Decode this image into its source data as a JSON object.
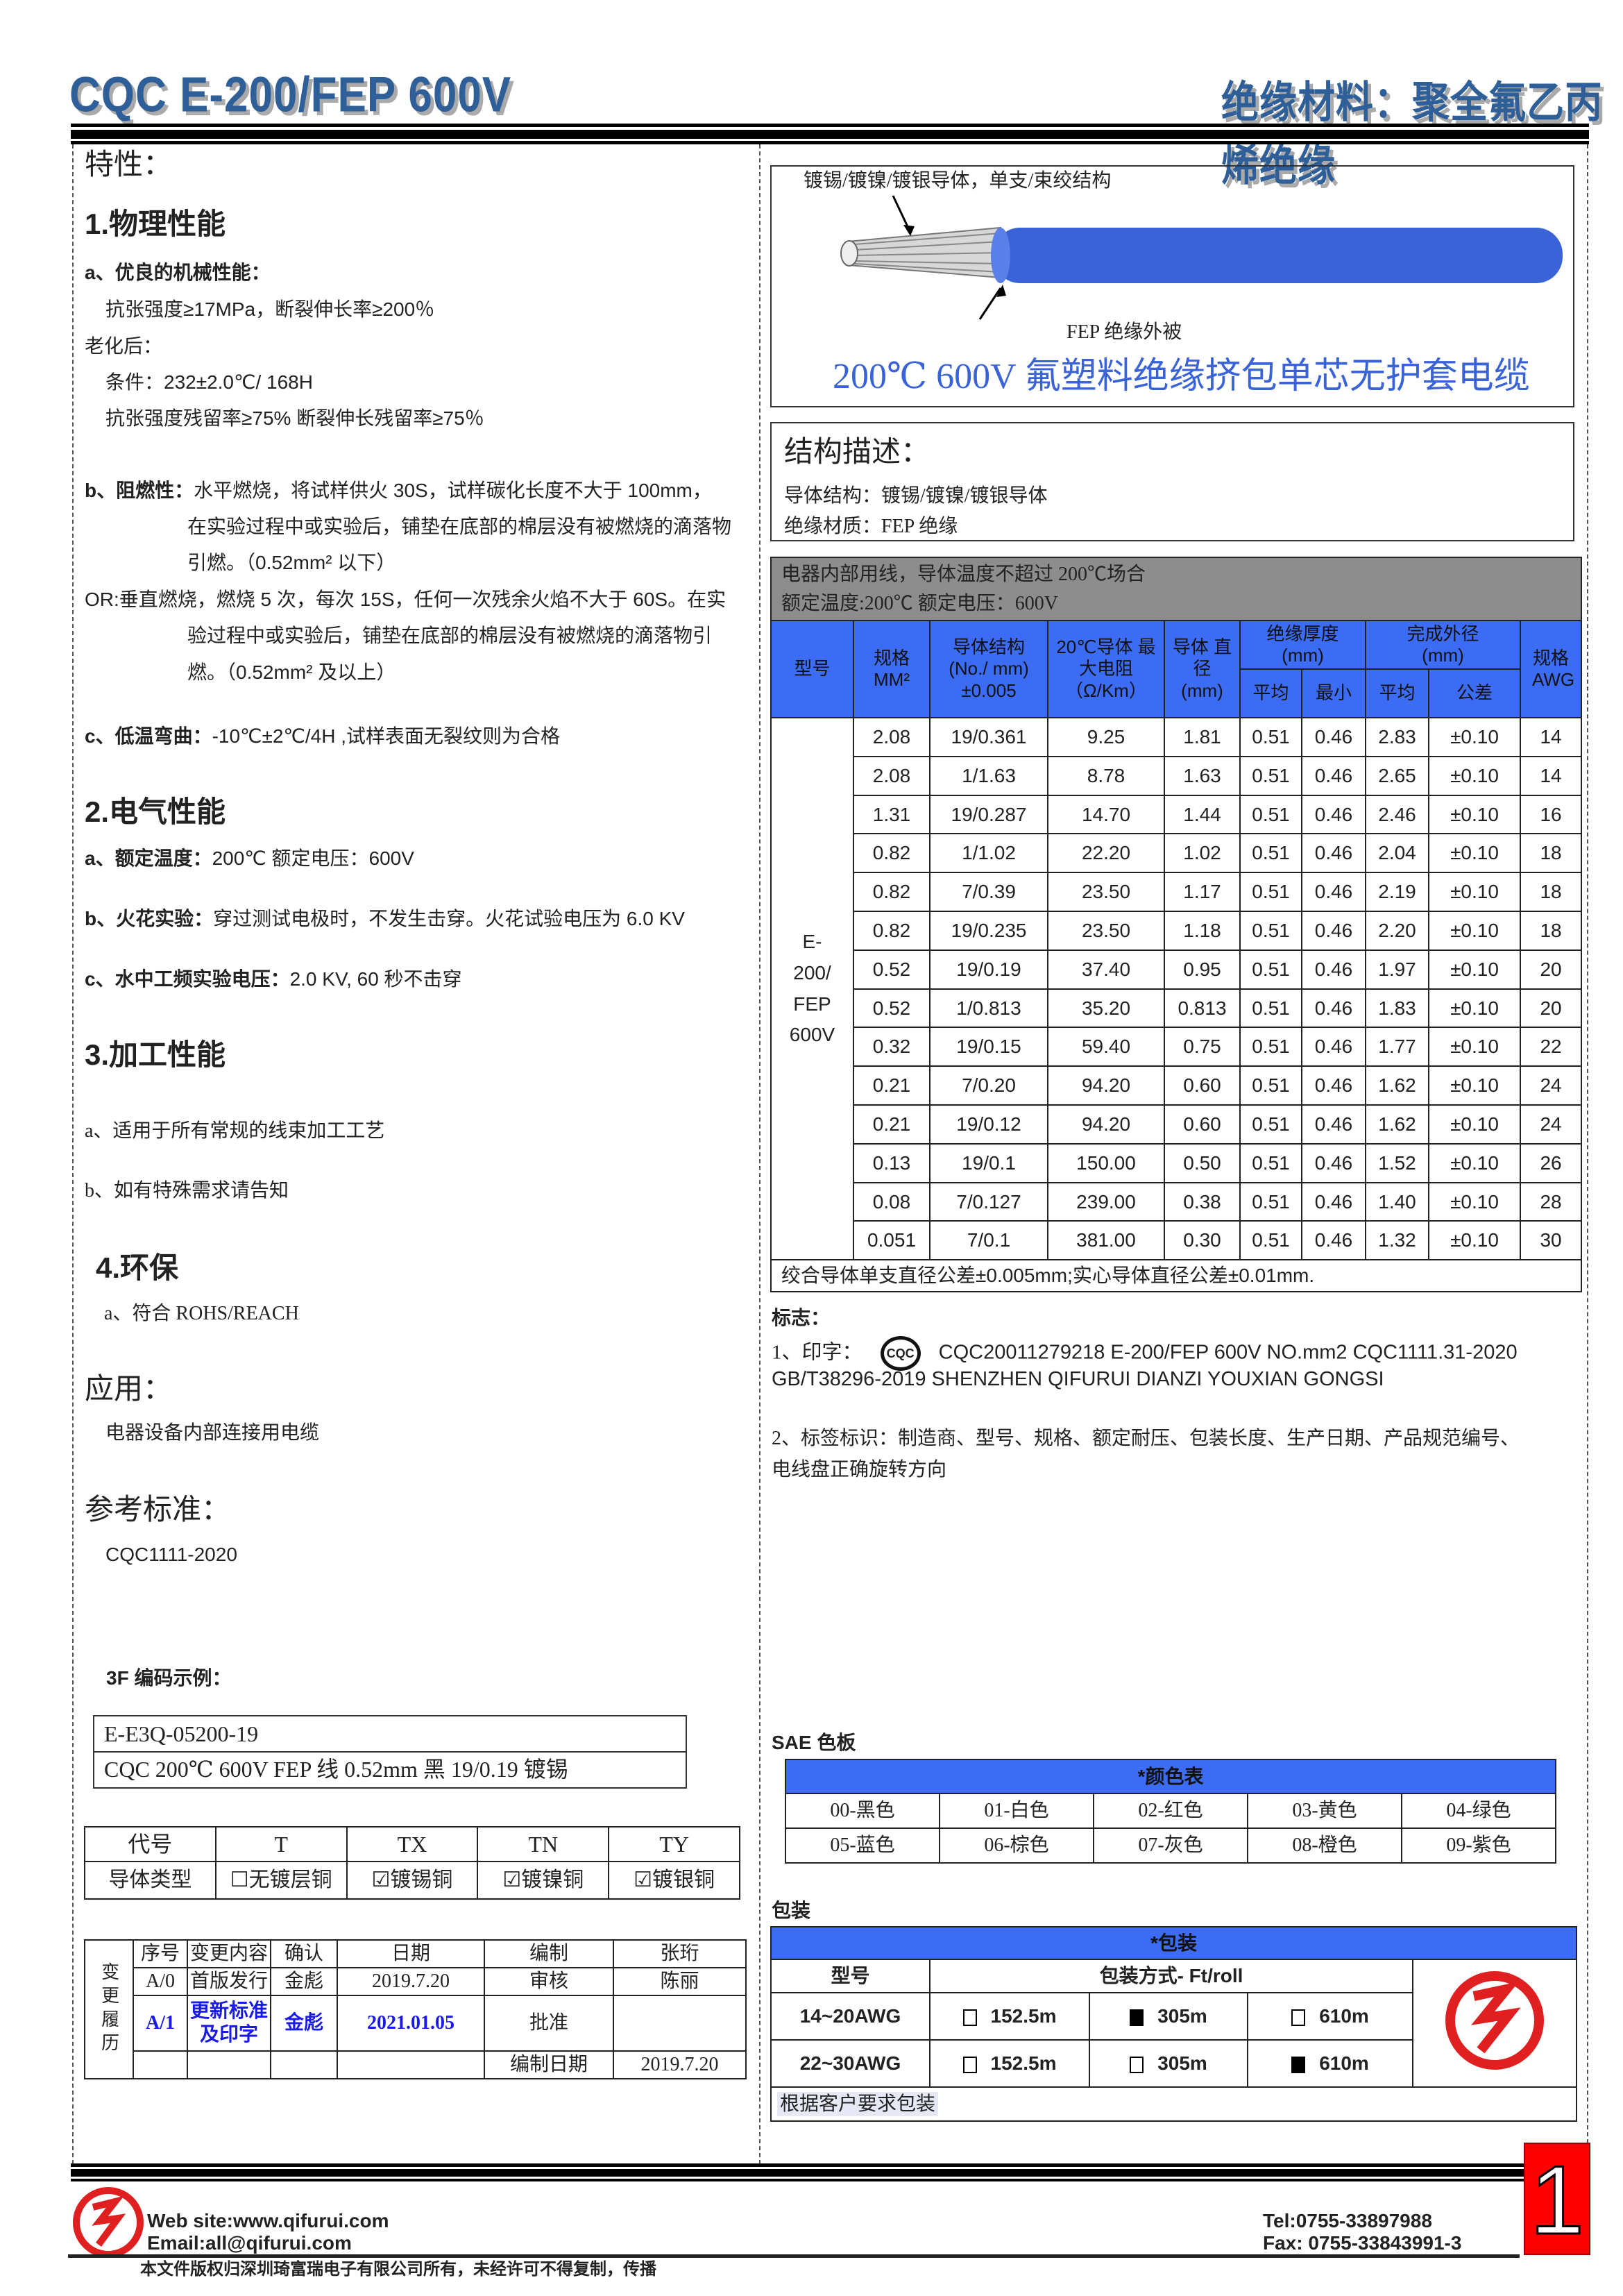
{
  "header": {
    "left_title": "CQC E-200/FEP 600V",
    "right_title": "绝缘材料：聚全氟乙丙烯绝缘"
  },
  "left": {
    "features_heading": "特性：",
    "physical": {
      "heading": "1.物理性能",
      "a_label": "a、优良的机械性能：",
      "a_line1": "抗张强度≥17MPa，断裂伸长率≥200％",
      "aging_label": "老化后：",
      "aging_cond": "条件：232±2.0℃/ 168H",
      "aging_result": "抗张强度残留率≥75%  断裂伸长残留率≥75％",
      "b_label": "b、阻燃性：",
      "b_line1": "水平燃烧，将试样供火 30S，试样碳化长度不大于 100mm，",
      "b_line2": "在实验过程中或实验后，铺垫在底部的棉层没有被燃烧的滴落物",
      "b_line3": "引燃。（0.52mm² 以下）",
      "or_line1": "OR:垂直燃烧，燃烧 5 次，每次 15S，任何一次残余火焰不大于 60S。在实",
      "or_line2": "验过程中或实验后，铺垫在底部的棉层没有被燃烧的滴落物引",
      "or_line3": "燃。（0.52mm² 及以上）",
      "c_label": "c、低温弯曲：",
      "c_text": "-10℃±2℃/4H ,试样表面无裂纹则为合格"
    },
    "electrical": {
      "heading": "2.电气性能",
      "a_label": "a、额定温度：",
      "a_text": "200℃    额定电压：600V",
      "b_label": "b、火花实验：",
      "b_text": "穿过测试电极时，不发生击穿。火花试验电压为 6.0 KV",
      "c_label": "c、水中工频实验电压：",
      "c_text": "2.0 KV, 60 秒不击穿"
    },
    "processing": {
      "heading": "3.加工性能",
      "a": "a、适用于所有常规的线束加工工艺",
      "b": "b、如有特殊需求请告知"
    },
    "environment": {
      "heading": "4.环保",
      "a": "a、符合 ROHS/REACH"
    },
    "application": {
      "heading": "应用：",
      "text": "电器设备内部连接用电缆"
    },
    "standard": {
      "heading": "参考标准：",
      "text": "CQC1111-2020"
    },
    "code_example": {
      "heading": "3F 编码示例：",
      "line1": "E-E3Q-05200-19",
      "line2": "CQC 200℃  600V FEP 线  0.52mm  黑 19/0.19 镀锡"
    },
    "conductor_table": {
      "codes": [
        "代号",
        "T",
        "TX",
        "TN",
        "TY"
      ],
      "types": [
        {
          "label": "导体类型",
          "checked": null
        },
        {
          "label": "无镀层铜",
          "checked": false
        },
        {
          "label": "镀锡铜",
          "checked": true
        },
        {
          "label": "镀镍铜",
          "checked": true
        },
        {
          "label": "镀银铜",
          "checked": true
        }
      ]
    },
    "revision": {
      "side_label": "变更履历",
      "header": [
        "序号",
        "变更内容",
        "确认",
        "日期",
        "编制",
        "张珩"
      ],
      "row1": [
        "A/0",
        "首版发行",
        "金彪",
        "2019.7.20",
        "审核",
        "陈丽"
      ],
      "row2": [
        "A/1",
        "更新标准及印字",
        "金彪",
        "2021.01.05",
        "批准",
        ""
      ],
      "row3": [
        "",
        "",
        "",
        "",
        "编制日期",
        "2019.7.20"
      ],
      "highlight_color": "#1a1ae6"
    }
  },
  "right": {
    "wire": {
      "conductor_label": "镀锡/镀镍/镀银导体，单支/束绞结构",
      "jacket_label": "FEP 绝缘外被",
      "title": "200℃  600V 氟塑料绝缘挤包单芯无护套电缆",
      "insulation_color": "#3a63d8"
    },
    "structure": {
      "heading": "结构描述：",
      "line1": "导体结构：镀锡/镀镍/镀银导体",
      "line2": "绝缘材质：FEP 绝缘"
    },
    "spec_table": {
      "info1": "电器内部用线，导体温度不超过 200℃场合",
      "info2": "额定温度:200℃  额定电压：600V",
      "headers": {
        "model": "型号",
        "size": "规格 MM²",
        "structure": "导体结构 (No./ mm) ±0.005",
        "resistance": "20℃导体 最大电阻 （Ω/Km）",
        "diameter": "导体 直径 (mm)",
        "insulation": "绝缘厚度 (mm)",
        "outer": "完成外径 (mm)",
        "avg": "平均",
        "min": "最小",
        "avg2": "平均",
        "tol": "公差",
        "awg": "规格 AWG"
      },
      "model": "E-200/ FEP 600V",
      "rows": [
        [
          "2.08",
          "19/0.361",
          "9.25",
          "1.81",
          "0.51",
          "0.46",
          "2.83",
          "±0.10",
          "14"
        ],
        [
          "2.08",
          "1/1.63",
          "8.78",
          "1.63",
          "0.51",
          "0.46",
          "2.65",
          "±0.10",
          "14"
        ],
        [
          "1.31",
          "19/0.287",
          "14.70",
          "1.44",
          "0.51",
          "0.46",
          "2.46",
          "±0.10",
          "16"
        ],
        [
          "0.82",
          "1/1.02",
          "22.20",
          "1.02",
          "0.51",
          "0.46",
          "2.04",
          "±0.10",
          "18"
        ],
        [
          "0.82",
          "7/0.39",
          "23.50",
          "1.17",
          "0.51",
          "0.46",
          "2.19",
          "±0.10",
          "18"
        ],
        [
          "0.82",
          "19/0.235",
          "23.50",
          "1.18",
          "0.51",
          "0.46",
          "2.20",
          "±0.10",
          "18"
        ],
        [
          "0.52",
          "19/0.19",
          "37.40",
          "0.95",
          "0.51",
          "0.46",
          "1.97",
          "±0.10",
          "20"
        ],
        [
          "0.52",
          "1/0.813",
          "35.20",
          "0.813",
          "0.51",
          "0.46",
          "1.83",
          "±0.10",
          "20"
        ],
        [
          "0.32",
          "19/0.15",
          "59.40",
          "0.75",
          "0.51",
          "0.46",
          "1.77",
          "±0.10",
          "22"
        ],
        [
          "0.21",
          "7/0.20",
          "94.20",
          "0.60",
          "0.51",
          "0.46",
          "1.62",
          "±0.10",
          "24"
        ],
        [
          "0.21",
          "19/0.12",
          "94.20",
          "0.60",
          "0.51",
          "0.46",
          "1.62",
          "±0.10",
          "24"
        ],
        [
          "0.13",
          "19/0.1",
          "150.00",
          "0.50",
          "0.51",
          "0.46",
          "1.52",
          "±0.10",
          "26"
        ],
        [
          "0.08",
          "7/0.127",
          "239.00",
          "0.38",
          "0.51",
          "0.46",
          "1.40",
          "±0.10",
          "28"
        ],
        [
          "0.051",
          "7/0.1",
          "381.00",
          "0.30",
          "0.51",
          "0.46",
          "1.32",
          "±0.10",
          "30"
        ]
      ],
      "note": "绞合导体单支直径公差±0.005mm;实心导体直径公差±0.01mm.",
      "header_color": "#3c6cf4",
      "info_color": "#8d8d8d"
    },
    "marking": {
      "heading": "标志：",
      "print_label": "1、印字：",
      "cqc_logo": "CQC",
      "print_text": "CQC20011279218  E-200/FEP  600V  NO.mm2  CQC1111.31-2020",
      "print_text2": "GB/T38296-2019 SHENZHEN QIFURUI DIANZI YOUXIAN GONGSI",
      "label_line1": "2、标签标识：制造商、型号、规格、额定耐压、包装长度、生产日期、产品规范编号、",
      "label_line2": "电线盘正确旋转方向"
    },
    "colors": {
      "heading": "SAE 色板",
      "table_title": "*颜色表",
      "items": [
        "00-黑色",
        "01-白色",
        "02-红色",
        "03-黄色",
        "04-绿色",
        "05-蓝色",
        "06-棕色",
        "07-灰色",
        "08-橙色",
        "09-紫色"
      ]
    },
    "packaging": {
      "heading": "包装",
      "table_title": "*包装",
      "model_header": "型号",
      "method_header": "包装方式- Ft/roll",
      "rows": [
        {
          "model": "14~20AWG",
          "options": [
            {
              "label": "152.5m",
              "selected": false
            },
            {
              "label": "305m",
              "selected": true
            },
            {
              "label": "610m",
              "selected": false
            }
          ]
        },
        {
          "model": "22~30AWG",
          "options": [
            {
              "label": "152.5m",
              "selected": false
            },
            {
              "label": "305m",
              "selected": false
            },
            {
              "label": "610m",
              "selected": true
            }
          ]
        }
      ],
      "note": "根据客户要求包装"
    }
  },
  "footer": {
    "website": "Web site:www.qifurui.com",
    "email": "Email:all@qifurui.com",
    "tel": "Tel:0755-33897988",
    "fax": "Fax: 0755-33843991-3",
    "copyright": "本文件版权归深圳琦富瑞电子有限公司所有，未经许可不得复制，传播",
    "page_number": "1",
    "brand_color": "#e02020"
  }
}
